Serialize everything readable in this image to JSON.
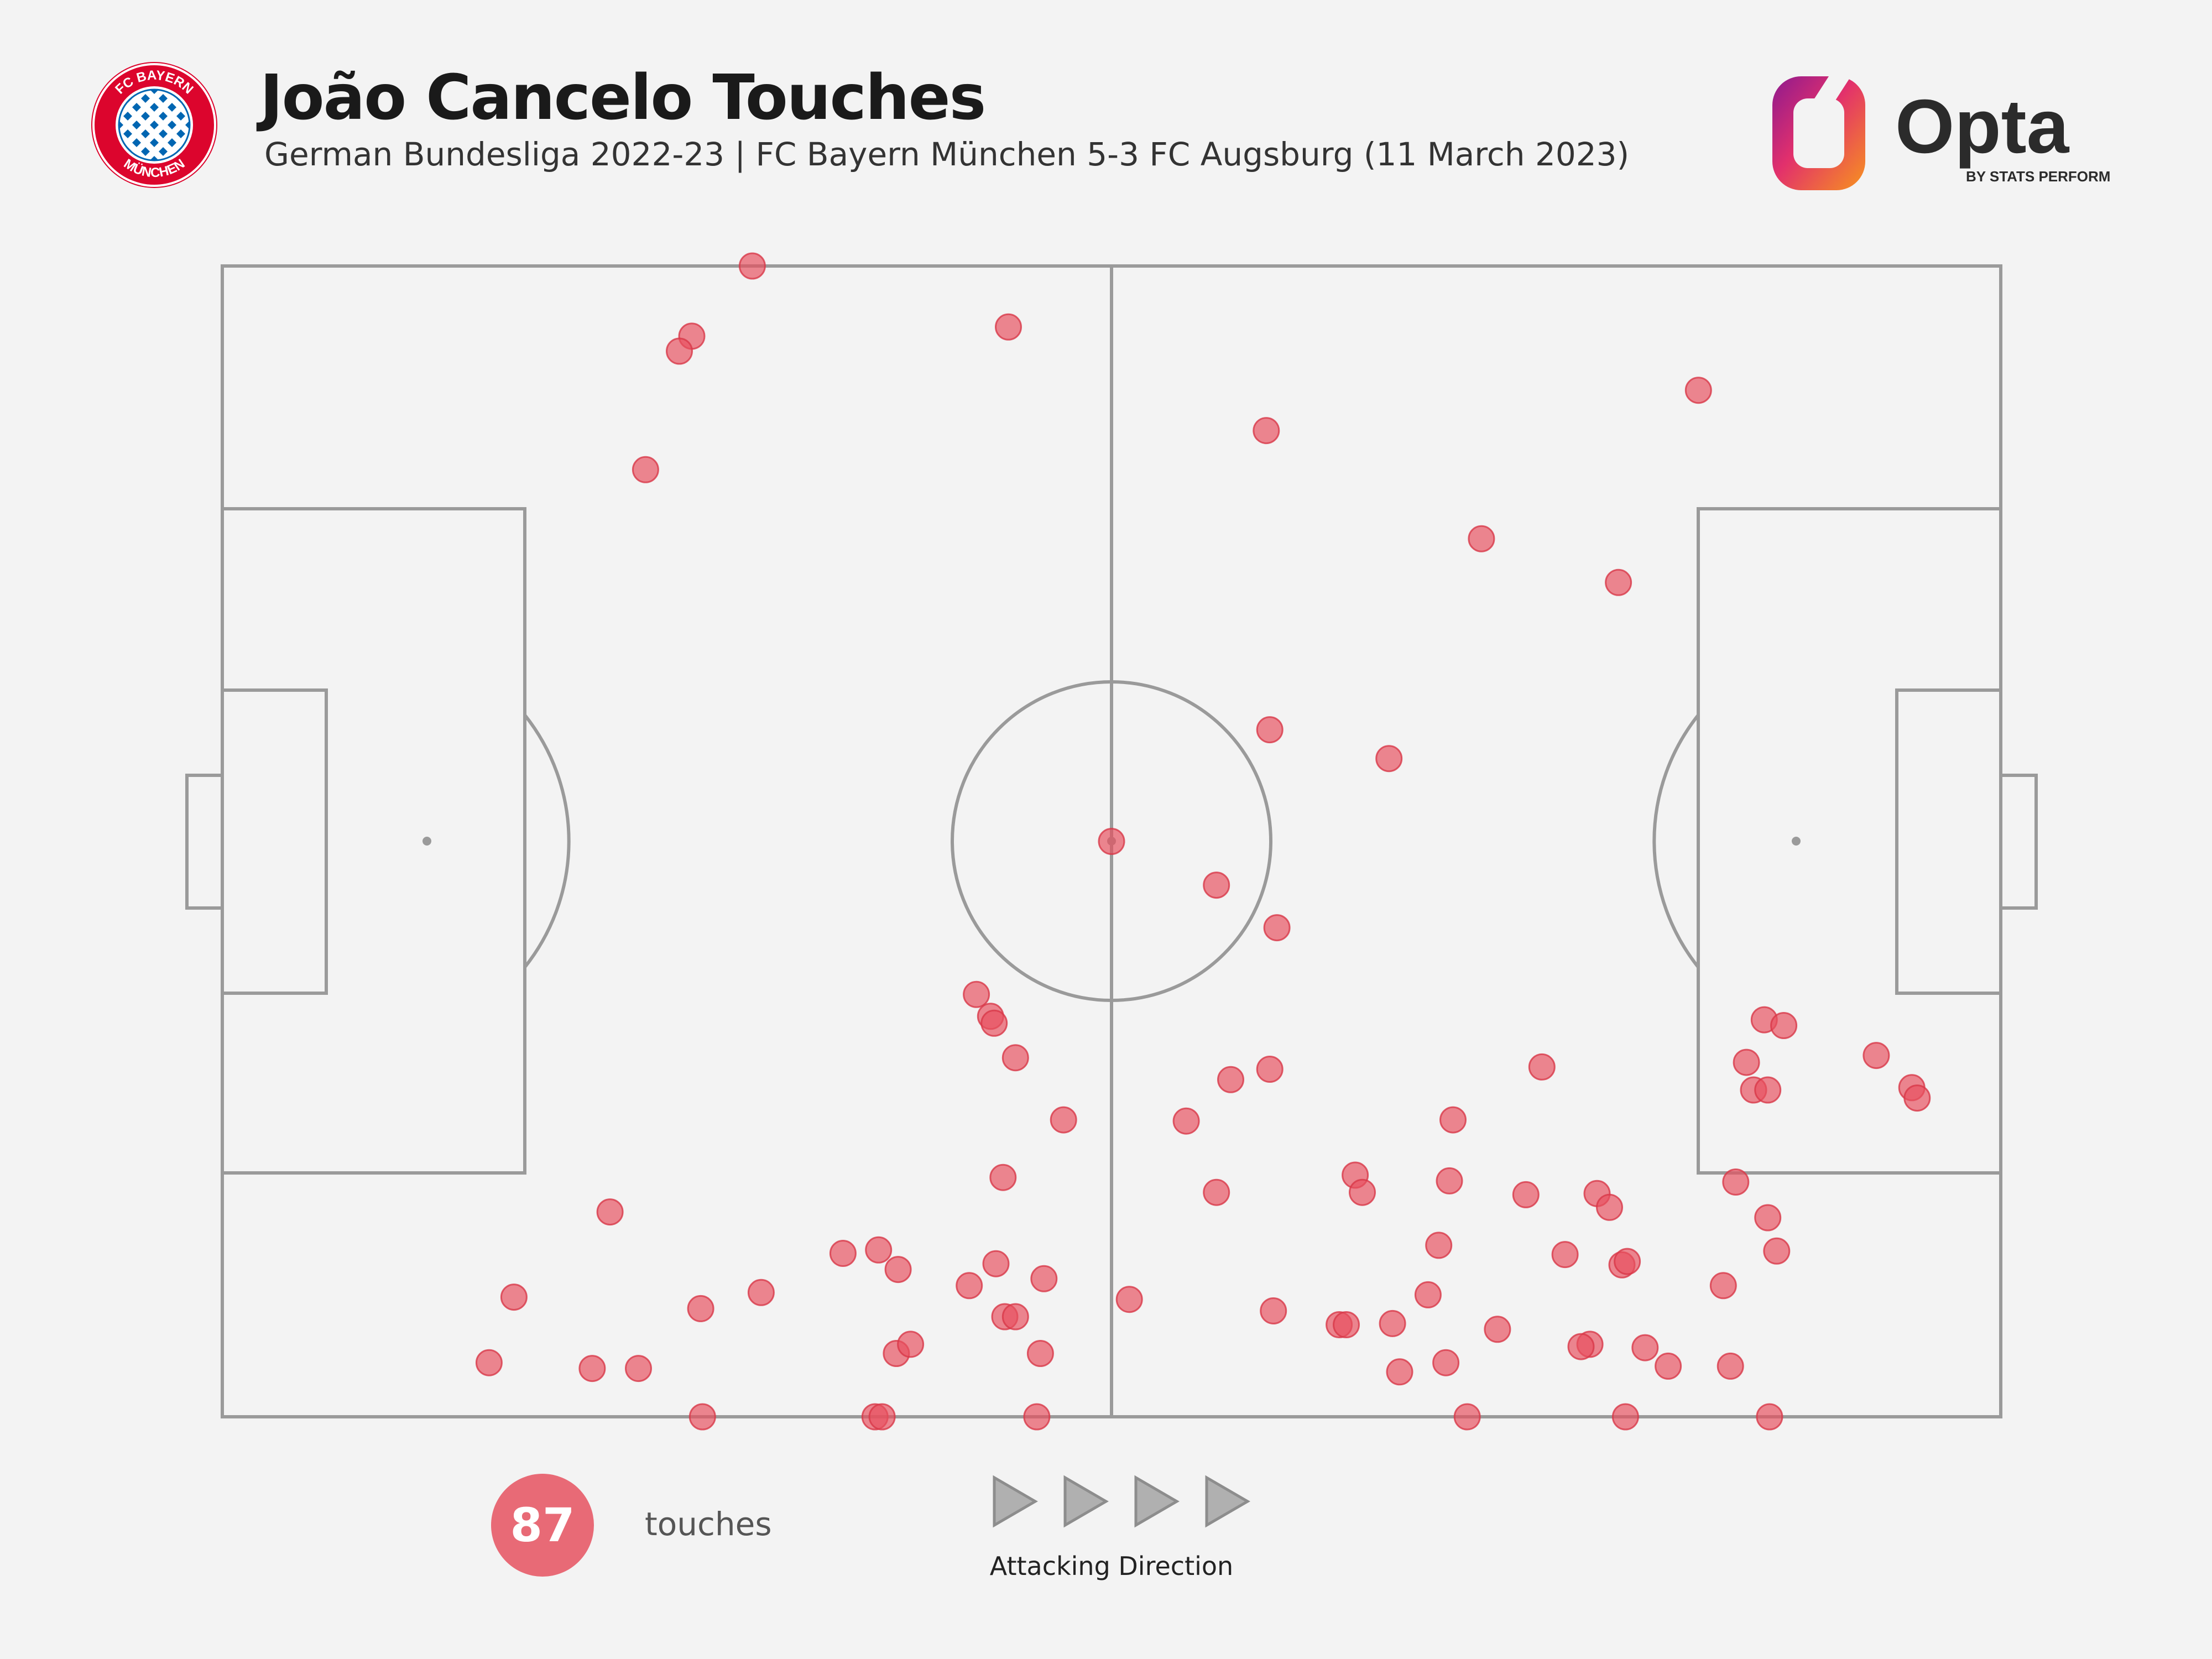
{
  "header": {
    "title": "João Cancelo Touches",
    "subtitle": "German Bundesliga 2022-23 | FC Bayern München 5-3 FC Augsburg (11 March 2023)",
    "club_logo_text_top": "FC BAYERN",
    "club_logo_text_bottom": "MÜNCHEN",
    "brand": "Opta",
    "brand_tagline": "BY STATS PERFORM"
  },
  "summary": {
    "touch_count": "87",
    "touch_label": "touches",
    "direction_label": "Attacking Direction"
  },
  "colors": {
    "background": "#f3f3f3",
    "pitch_lines": "#9a9a9a",
    "touch_marker": "#e8505f",
    "count_badge": "#e86a76",
    "bayern_red": "#dc052d",
    "bayern_blue": "#0066b2"
  },
  "chart_data": {
    "type": "scatter",
    "title": "João Cancelo Touches",
    "xlabel": "",
    "ylabel": "",
    "xlim": [
      0,
      100
    ],
    "ylim": [
      0,
      100
    ],
    "grid": false,
    "points": [
      {
        "x": 29.8,
        "y": 100.0
      },
      {
        "x": 26.4,
        "y": 93.9
      },
      {
        "x": 25.7,
        "y": 92.6
      },
      {
        "x": 23.8,
        "y": 82.3
      },
      {
        "x": 44.2,
        "y": 94.7
      },
      {
        "x": 58.7,
        "y": 85.7
      },
      {
        "x": 70.8,
        "y": 76.3
      },
      {
        "x": 83.0,
        "y": 89.2
      },
      {
        "x": 78.5,
        "y": 72.5
      },
      {
        "x": 58.9,
        "y": 59.7
      },
      {
        "x": 65.6,
        "y": 57.2
      },
      {
        "x": 55.9,
        "y": 46.2
      },
      {
        "x": 59.3,
        "y": 42.5
      },
      {
        "x": 42.4,
        "y": 36.7
      },
      {
        "x": 43.2,
        "y": 34.8
      },
      {
        "x": 43.4,
        "y": 34.2
      },
      {
        "x": 44.6,
        "y": 31.2
      },
      {
        "x": 47.3,
        "y": 25.8
      },
      {
        "x": 43.9,
        "y": 20.8
      },
      {
        "x": 21.8,
        "y": 17.8
      },
      {
        "x": 16.4,
        "y": 10.4
      },
      {
        "x": 26.9,
        "y": 9.4
      },
      {
        "x": 30.3,
        "y": 10.8
      },
      {
        "x": 15.0,
        "y": 4.7
      },
      {
        "x": 20.8,
        "y": 4.2
      },
      {
        "x": 23.4,
        "y": 4.2
      },
      {
        "x": 27.0,
        "y": 0.0
      },
      {
        "x": 34.9,
        "y": 14.2
      },
      {
        "x": 36.9,
        "y": 14.5
      },
      {
        "x": 38.0,
        "y": 12.8
      },
      {
        "x": 37.9,
        "y": 5.5
      },
      {
        "x": 38.7,
        "y": 6.3
      },
      {
        "x": 36.7,
        "y": 0.0
      },
      {
        "x": 37.1,
        "y": 0.0
      },
      {
        "x": 42.0,
        "y": 11.4
      },
      {
        "x": 43.5,
        "y": 13.3
      },
      {
        "x": 44.0,
        "y": 8.7
      },
      {
        "x": 44.6,
        "y": 8.7
      },
      {
        "x": 46.2,
        "y": 12.0
      },
      {
        "x": 46.0,
        "y": 5.5
      },
      {
        "x": 45.8,
        "y": 0.0
      },
      {
        "x": 51.0,
        "y": 10.2
      },
      {
        "x": 54.2,
        "y": 25.7
      },
      {
        "x": 56.7,
        "y": 29.3
      },
      {
        "x": 58.9,
        "y": 30.2
      },
      {
        "x": 55.9,
        "y": 19.5
      },
      {
        "x": 59.1,
        "y": 9.2
      },
      {
        "x": 62.8,
        "y": 8.0
      },
      {
        "x": 63.2,
        "y": 8.0
      },
      {
        "x": 63.7,
        "y": 21.0
      },
      {
        "x": 64.1,
        "y": 19.5
      },
      {
        "x": 68.4,
        "y": 14.9
      },
      {
        "x": 69.2,
        "y": 25.8
      },
      {
        "x": 69.0,
        "y": 20.5
      },
      {
        "x": 67.8,
        "y": 10.6
      },
      {
        "x": 65.8,
        "y": 8.1
      },
      {
        "x": 71.7,
        "y": 7.6
      },
      {
        "x": 68.8,
        "y": 4.7
      },
      {
        "x": 66.2,
        "y": 3.9
      },
      {
        "x": 70.0,
        "y": 0.0
      },
      {
        "x": 73.3,
        "y": 19.3
      },
      {
        "x": 74.2,
        "y": 30.4
      },
      {
        "x": 75.5,
        "y": 14.1
      },
      {
        "x": 77.3,
        "y": 19.4
      },
      {
        "x": 78.0,
        "y": 18.2
      },
      {
        "x": 76.9,
        "y": 6.3
      },
      {
        "x": 76.4,
        "y": 6.1
      },
      {
        "x": 78.7,
        "y": 13.2
      },
      {
        "x": 79.0,
        "y": 13.5
      },
      {
        "x": 80.0,
        "y": 6.0
      },
      {
        "x": 81.3,
        "y": 4.4
      },
      {
        "x": 78.9,
        "y": 0.0
      },
      {
        "x": 84.4,
        "y": 11.4
      },
      {
        "x": 84.8,
        "y": 4.4
      },
      {
        "x": 85.1,
        "y": 20.4
      },
      {
        "x": 86.9,
        "y": 17.3
      },
      {
        "x": 87.4,
        "y": 14.4
      },
      {
        "x": 87.0,
        "y": 0.0
      },
      {
        "x": 85.7,
        "y": 30.8
      },
      {
        "x": 86.7,
        "y": 34.5
      },
      {
        "x": 87.8,
        "y": 34.0
      },
      {
        "x": 86.1,
        "y": 28.4
      },
      {
        "x": 86.9,
        "y": 28.4
      },
      {
        "x": 93.0,
        "y": 31.4
      },
      {
        "x": 95.0,
        "y": 28.6
      },
      {
        "x": 95.3,
        "y": 27.7
      },
      {
        "x": 50.0,
        "y": 50.0
      }
    ]
  }
}
